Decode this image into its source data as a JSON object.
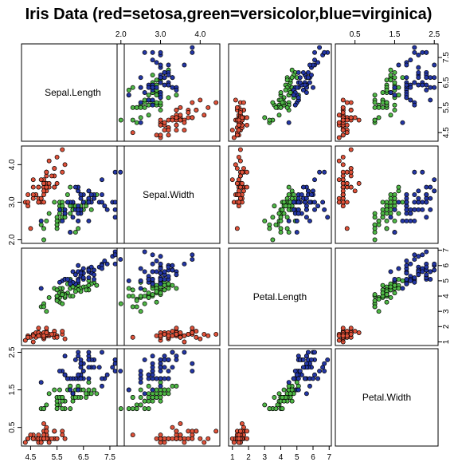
{
  "chart_data": {
    "type": "scatter",
    "title": "Iris Data (red=setosa,green=versicolor,blue=virginica)",
    "variables": [
      "Sepal.Length",
      "Sepal.Width",
      "Petal.Length",
      "Petal.Width"
    ],
    "ranges": [
      [
        4.3,
        7.9
      ],
      [
        2.0,
        4.4
      ],
      [
        1.0,
        6.9
      ],
      [
        0.1,
        2.5
      ]
    ],
    "ticks": [
      [
        "4.5",
        "5.5",
        "6.5",
        "7.5"
      ],
      [
        "2.0",
        "3.0",
        "4.0"
      ],
      [
        "1",
        "2",
        "3",
        "4",
        "5",
        "6",
        "7"
      ],
      [
        "0.5",
        "1.5",
        "2.5"
      ]
    ],
    "species_colors": {
      "setosa": "#e0523a",
      "versicolor": "#4fb846",
      "virginica": "#2437a6"
    },
    "series": [
      {
        "species": "setosa",
        "points": [
          [
            5.1,
            3.5,
            1.4,
            0.2
          ],
          [
            4.9,
            3.0,
            1.4,
            0.2
          ],
          [
            4.7,
            3.2,
            1.3,
            0.2
          ],
          [
            4.6,
            3.1,
            1.5,
            0.2
          ],
          [
            5.0,
            3.6,
            1.4,
            0.2
          ],
          [
            5.4,
            3.9,
            1.7,
            0.4
          ],
          [
            4.6,
            3.4,
            1.4,
            0.3
          ],
          [
            5.0,
            3.4,
            1.5,
            0.2
          ],
          [
            4.4,
            2.9,
            1.4,
            0.2
          ],
          [
            4.9,
            3.1,
            1.5,
            0.1
          ],
          [
            5.4,
            3.7,
            1.5,
            0.2
          ],
          [
            4.8,
            3.4,
            1.6,
            0.2
          ],
          [
            4.8,
            3.0,
            1.4,
            0.1
          ],
          [
            4.3,
            3.0,
            1.1,
            0.1
          ],
          [
            5.8,
            4.0,
            1.2,
            0.2
          ],
          [
            5.7,
            4.4,
            1.5,
            0.4
          ],
          [
            5.4,
            3.9,
            1.3,
            0.4
          ],
          [
            5.1,
            3.5,
            1.4,
            0.3
          ],
          [
            5.7,
            3.8,
            1.7,
            0.3
          ],
          [
            5.1,
            3.8,
            1.5,
            0.3
          ],
          [
            5.4,
            3.4,
            1.7,
            0.2
          ],
          [
            5.1,
            3.7,
            1.5,
            0.4
          ],
          [
            4.6,
            3.6,
            1.0,
            0.2
          ],
          [
            5.1,
            3.3,
            1.7,
            0.5
          ],
          [
            4.8,
            3.4,
            1.9,
            0.2
          ],
          [
            5.0,
            3.0,
            1.6,
            0.2
          ],
          [
            5.0,
            3.4,
            1.6,
            0.4
          ],
          [
            5.2,
            3.5,
            1.5,
            0.2
          ],
          [
            5.2,
            3.4,
            1.4,
            0.2
          ],
          [
            4.7,
            3.2,
            1.6,
            0.2
          ],
          [
            4.8,
            3.1,
            1.6,
            0.2
          ],
          [
            5.4,
            3.4,
            1.5,
            0.4
          ],
          [
            5.2,
            4.1,
            1.5,
            0.1
          ],
          [
            5.5,
            4.2,
            1.4,
            0.2
          ],
          [
            4.9,
            3.1,
            1.5,
            0.2
          ],
          [
            5.0,
            3.2,
            1.2,
            0.2
          ],
          [
            5.5,
            3.5,
            1.3,
            0.2
          ],
          [
            4.9,
            3.6,
            1.4,
            0.1
          ],
          [
            4.4,
            3.0,
            1.3,
            0.2
          ],
          [
            5.1,
            3.4,
            1.5,
            0.2
          ],
          [
            5.0,
            3.5,
            1.3,
            0.3
          ],
          [
            4.5,
            2.3,
            1.3,
            0.3
          ],
          [
            4.4,
            3.2,
            1.3,
            0.2
          ],
          [
            5.0,
            3.5,
            1.6,
            0.6
          ],
          [
            5.1,
            3.8,
            1.9,
            0.4
          ],
          [
            4.8,
            3.0,
            1.4,
            0.3
          ],
          [
            5.1,
            3.8,
            1.6,
            0.2
          ],
          [
            4.6,
            3.2,
            1.4,
            0.2
          ],
          [
            5.3,
            3.7,
            1.5,
            0.2
          ],
          [
            5.0,
            3.3,
            1.4,
            0.2
          ]
        ]
      },
      {
        "species": "versicolor",
        "points": [
          [
            7.0,
            3.2,
            4.7,
            1.4
          ],
          [
            6.4,
            3.2,
            4.5,
            1.5
          ],
          [
            6.9,
            3.1,
            4.9,
            1.5
          ],
          [
            5.5,
            2.3,
            4.0,
            1.3
          ],
          [
            6.5,
            2.8,
            4.6,
            1.5
          ],
          [
            5.7,
            2.8,
            4.5,
            1.3
          ],
          [
            6.3,
            3.3,
            4.7,
            1.6
          ],
          [
            4.9,
            2.4,
            3.3,
            1.0
          ],
          [
            6.6,
            2.9,
            4.6,
            1.3
          ],
          [
            5.2,
            2.7,
            3.9,
            1.4
          ],
          [
            5.0,
            2.0,
            3.5,
            1.0
          ],
          [
            5.9,
            3.0,
            4.2,
            1.5
          ],
          [
            6.0,
            2.2,
            4.0,
            1.0
          ],
          [
            6.1,
            2.9,
            4.7,
            1.4
          ],
          [
            5.6,
            2.9,
            3.6,
            1.3
          ],
          [
            6.7,
            3.1,
            4.4,
            1.4
          ],
          [
            5.6,
            3.0,
            4.5,
            1.5
          ],
          [
            5.8,
            2.7,
            4.1,
            1.0
          ],
          [
            6.2,
            2.2,
            4.5,
            1.5
          ],
          [
            5.6,
            2.5,
            3.9,
            1.1
          ],
          [
            5.9,
            3.2,
            4.8,
            1.8
          ],
          [
            6.1,
            2.8,
            4.0,
            1.3
          ],
          [
            6.3,
            2.5,
            4.9,
            1.5
          ],
          [
            6.1,
            2.8,
            4.7,
            1.2
          ],
          [
            6.4,
            2.9,
            4.3,
            1.3
          ],
          [
            6.6,
            3.0,
            4.4,
            1.4
          ],
          [
            6.8,
            2.8,
            4.8,
            1.4
          ],
          [
            6.7,
            3.0,
            5.0,
            1.7
          ],
          [
            6.0,
            2.9,
            4.5,
            1.5
          ],
          [
            5.7,
            2.6,
            3.5,
            1.0
          ],
          [
            5.5,
            2.4,
            3.8,
            1.1
          ],
          [
            5.5,
            2.4,
            3.7,
            1.0
          ],
          [
            5.8,
            2.7,
            3.9,
            1.2
          ],
          [
            6.0,
            2.7,
            5.1,
            1.6
          ],
          [
            5.4,
            3.0,
            4.5,
            1.5
          ],
          [
            6.0,
            3.4,
            4.5,
            1.6
          ],
          [
            6.7,
            3.1,
            4.7,
            1.5
          ],
          [
            6.3,
            2.3,
            4.4,
            1.3
          ],
          [
            5.6,
            3.0,
            4.1,
            1.3
          ],
          [
            5.5,
            2.5,
            4.0,
            1.3
          ],
          [
            5.5,
            2.6,
            4.4,
            1.2
          ],
          [
            6.1,
            3.0,
            4.6,
            1.4
          ],
          [
            5.8,
            2.6,
            4.0,
            1.2
          ],
          [
            5.0,
            2.3,
            3.3,
            1.0
          ],
          [
            5.6,
            2.7,
            4.2,
            1.3
          ],
          [
            5.7,
            3.0,
            4.2,
            1.2
          ],
          [
            5.7,
            2.9,
            4.2,
            1.3
          ],
          [
            6.2,
            2.9,
            4.3,
            1.3
          ],
          [
            5.1,
            2.5,
            3.0,
            1.1
          ],
          [
            5.7,
            2.8,
            4.1,
            1.3
          ]
        ]
      },
      {
        "species": "virginica",
        "points": [
          [
            6.3,
            3.3,
            6.0,
            2.5
          ],
          [
            5.8,
            2.7,
            5.1,
            1.9
          ],
          [
            7.1,
            3.0,
            5.9,
            2.1
          ],
          [
            6.3,
            2.9,
            5.6,
            1.8
          ],
          [
            6.5,
            3.0,
            5.8,
            2.2
          ],
          [
            7.6,
            3.0,
            6.6,
            2.1
          ],
          [
            4.9,
            2.5,
            4.5,
            1.7
          ],
          [
            7.3,
            2.9,
            6.3,
            1.8
          ],
          [
            6.7,
            2.5,
            5.8,
            1.8
          ],
          [
            7.2,
            3.6,
            6.1,
            2.5
          ],
          [
            6.5,
            3.2,
            5.1,
            2.0
          ],
          [
            6.4,
            2.7,
            5.3,
            1.9
          ],
          [
            6.8,
            3.0,
            5.5,
            2.1
          ],
          [
            5.7,
            2.5,
            5.0,
            2.0
          ],
          [
            5.8,
            2.8,
            5.1,
            2.4
          ],
          [
            6.4,
            3.2,
            5.3,
            2.3
          ],
          [
            6.5,
            3.0,
            5.5,
            1.8
          ],
          [
            7.7,
            3.8,
            6.7,
            2.2
          ],
          [
            7.7,
            2.6,
            6.9,
            2.3
          ],
          [
            6.0,
            2.2,
            5.0,
            1.5
          ],
          [
            6.9,
            3.2,
            5.7,
            2.3
          ],
          [
            5.6,
            2.8,
            4.9,
            2.0
          ],
          [
            7.7,
            2.8,
            6.7,
            2.0
          ],
          [
            6.3,
            2.7,
            4.9,
            1.8
          ],
          [
            6.7,
            3.3,
            5.7,
            2.1
          ],
          [
            7.2,
            3.2,
            6.0,
            1.8
          ],
          [
            6.2,
            2.8,
            4.8,
            1.8
          ],
          [
            6.1,
            3.0,
            4.9,
            1.8
          ],
          [
            6.4,
            2.8,
            5.6,
            2.1
          ],
          [
            7.2,
            3.0,
            5.8,
            1.6
          ],
          [
            7.4,
            2.8,
            6.1,
            1.9
          ],
          [
            7.9,
            3.8,
            6.4,
            2.0
          ],
          [
            6.4,
            2.8,
            5.6,
            2.2
          ],
          [
            6.3,
            2.8,
            5.1,
            1.5
          ],
          [
            6.1,
            2.6,
            5.6,
            1.4
          ],
          [
            7.7,
            3.0,
            6.1,
            2.3
          ],
          [
            6.3,
            3.4,
            5.6,
            2.4
          ],
          [
            6.4,
            3.1,
            5.5,
            1.8
          ],
          [
            6.0,
            3.0,
            4.8,
            1.8
          ],
          [
            6.9,
            3.1,
            5.4,
            2.1
          ],
          [
            6.7,
            3.1,
            5.6,
            2.4
          ],
          [
            6.9,
            3.1,
            5.1,
            2.3
          ],
          [
            5.8,
            2.7,
            5.1,
            1.9
          ],
          [
            6.8,
            3.2,
            5.9,
            2.3
          ],
          [
            6.7,
            3.3,
            5.7,
            2.5
          ],
          [
            6.7,
            3.0,
            5.2,
            2.3
          ],
          [
            6.3,
            2.5,
            5.0,
            1.9
          ],
          [
            6.5,
            3.0,
            5.2,
            2.0
          ],
          [
            6.2,
            3.4,
            5.4,
            2.3
          ],
          [
            5.9,
            3.0,
            5.1,
            1.8
          ]
        ]
      }
    ],
    "grid": false,
    "legend": "none"
  }
}
